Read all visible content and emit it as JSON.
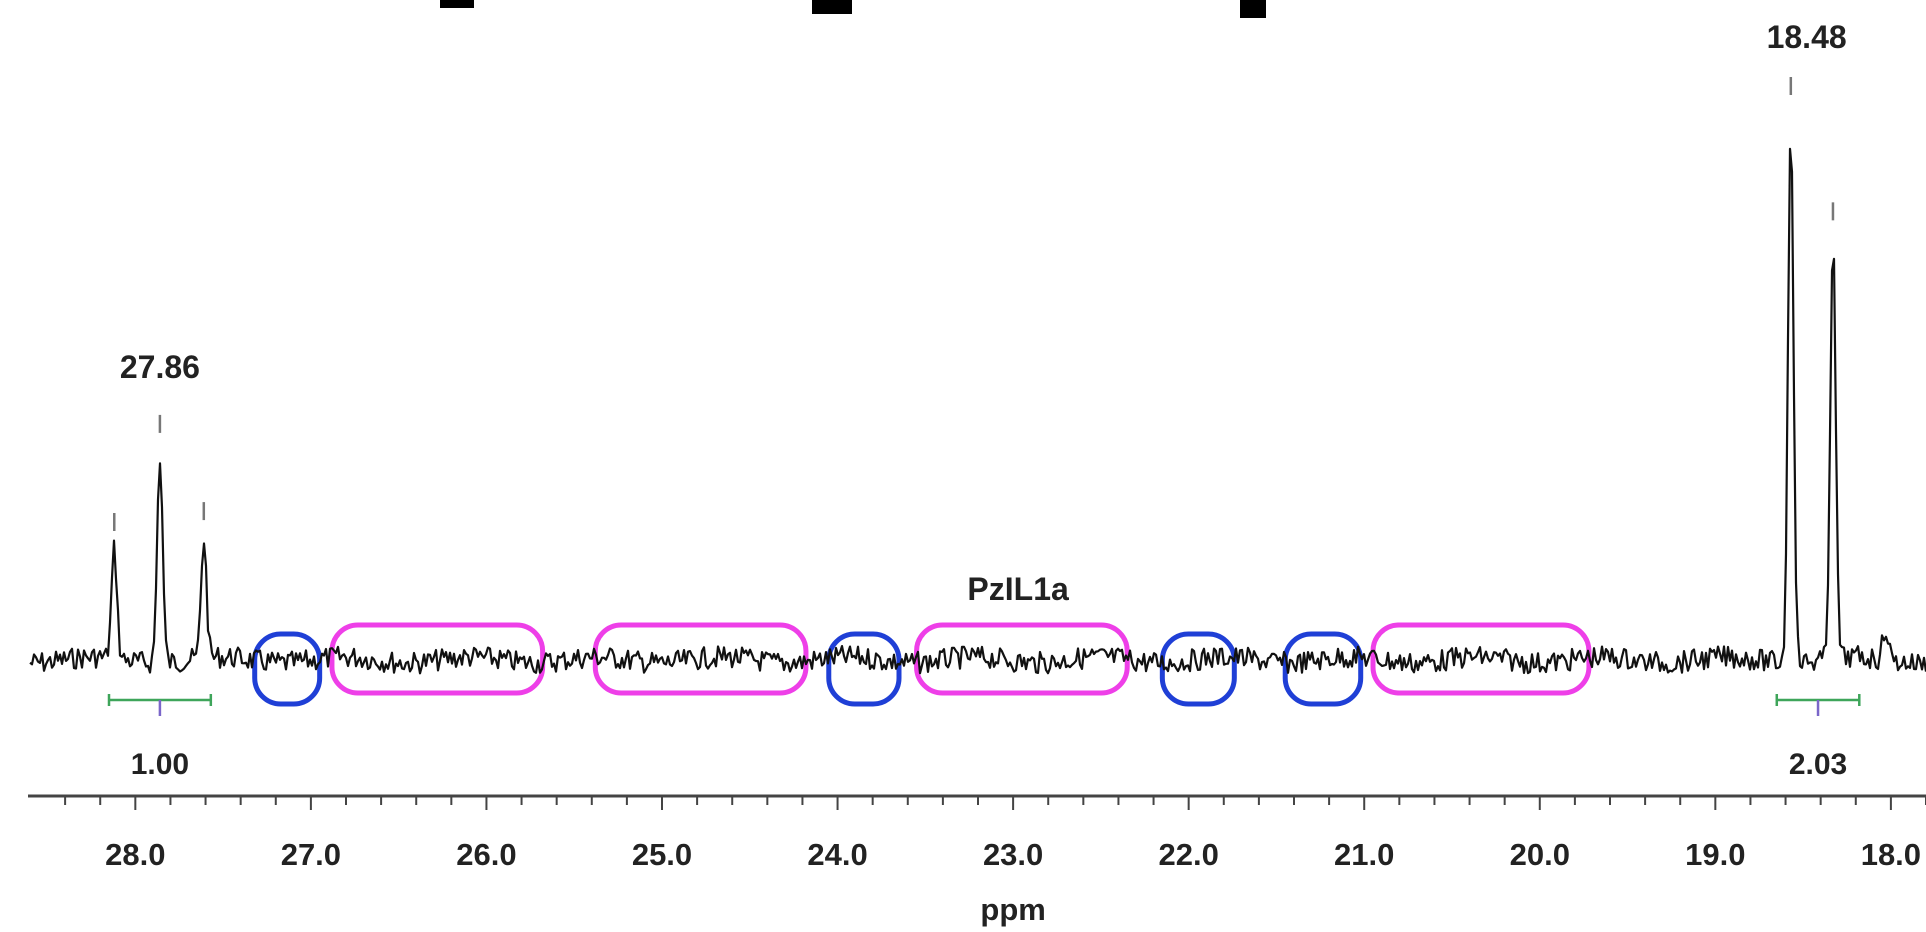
{
  "chart_data": {
    "type": "line",
    "title": "",
    "xlabel": "ppm",
    "ylabel": "",
    "x_reversed": true,
    "xlim": [
      28.6,
      17.8
    ],
    "x_ticks": [
      28.0,
      27.0,
      26.0,
      25.0,
      24.0,
      23.0,
      22.0,
      21.0,
      20.0,
      19.0,
      18.0
    ],
    "x_tick_labels": [
      "28.0",
      "27.0",
      "26.0",
      "25.0",
      "24.0",
      "23.0",
      "22.0",
      "21.0",
      "20.0",
      "19.0",
      "18.0"
    ],
    "peaks": [
      {
        "ppm": 28.12,
        "height": 0.2
      },
      {
        "ppm": 27.86,
        "height": 0.38
      },
      {
        "ppm": 27.61,
        "height": 0.22
      },
      {
        "ppm": 18.57,
        "height": 1.0
      },
      {
        "ppm": 18.33,
        "height": 0.77
      },
      {
        "ppm": 18.03,
        "height": 0.06
      }
    ],
    "peak_labels": [
      {
        "ppm": 27.86,
        "text": "27.86"
      },
      {
        "ppm": 18.48,
        "text": "18.48"
      }
    ],
    "integrals": [
      {
        "from": 28.15,
        "to": 27.57,
        "value": "1.00"
      },
      {
        "from": 18.65,
        "to": 18.18,
        "value": "2.03"
      }
    ],
    "sample_label": "PzIL1a",
    "highlight_regions": [
      {
        "from": 27.32,
        "to": 26.95,
        "color": "#1f3fd6"
      },
      {
        "from": 26.88,
        "to": 25.68,
        "color": "#ee3fe8"
      },
      {
        "from": 25.38,
        "to": 24.18,
        "color": "#ee3fe8"
      },
      {
        "from": 24.05,
        "to": 23.65,
        "color": "#1f3fd6"
      },
      {
        "from": 23.55,
        "to": 22.35,
        "color": "#ee3fe8"
      },
      {
        "from": 22.15,
        "to": 21.74,
        "color": "#1f3fd6"
      },
      {
        "from": 21.45,
        "to": 21.02,
        "color": "#1f3fd6"
      },
      {
        "from": 20.95,
        "to": 19.72,
        "color": "#ee3fe8"
      }
    ],
    "colors": {
      "spectrum": "#111111",
      "integral": "#3ea55a",
      "axis": "#444444"
    }
  }
}
